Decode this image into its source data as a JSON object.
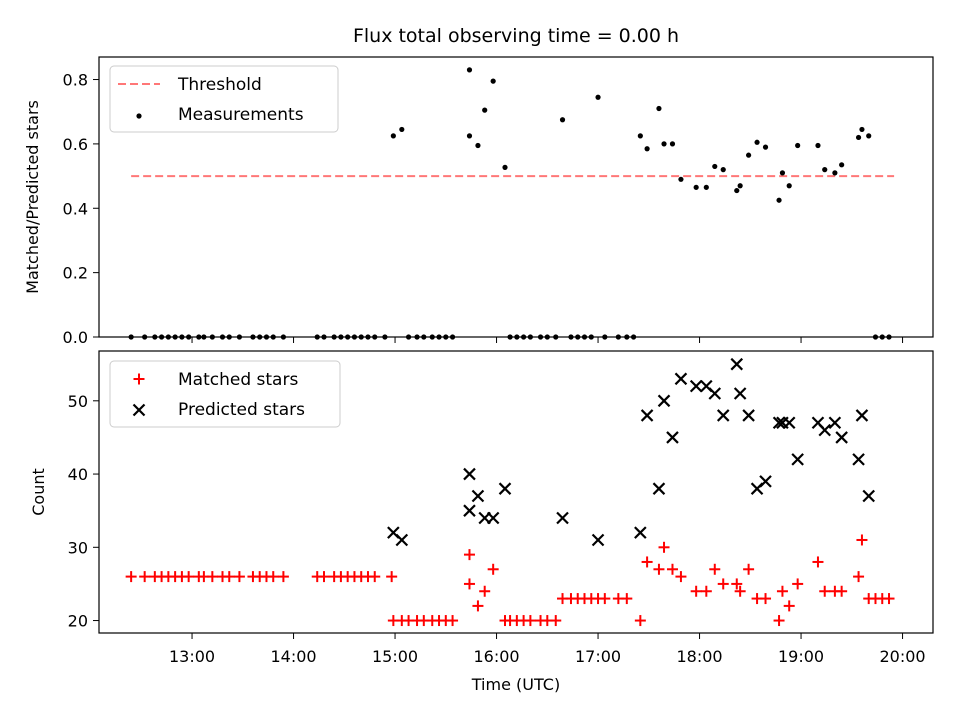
{
  "chart_data": [
    {
      "type": "scatter",
      "title": "Flux total observing time = 0.00 h",
      "ylabel": "Matched/Predicted stars",
      "xlabel": "",
      "ylim": [
        0,
        0.87
      ],
      "yticks": [
        0.0,
        0.2,
        0.4,
        0.6,
        0.8
      ],
      "ytick_labels": [
        "0.0",
        "0.2",
        "0.4",
        "0.6",
        "0.8"
      ],
      "legend_position": "top-left",
      "threshold": {
        "name": "Threshold",
        "value": 0.5,
        "x_range": [
          "12:24",
          "19:55"
        ],
        "color": "#ff7777"
      },
      "series": [
        {
          "name": "Measurements",
          "color": "#000000",
          "marker": "dot",
          "points": [
            [
              "12:24",
              0
            ],
            [
              "12:32",
              0
            ],
            [
              "12:38",
              0
            ],
            [
              "12:42",
              0
            ],
            [
              "12:46",
              0
            ],
            [
              "12:50",
              0
            ],
            [
              "12:54",
              0
            ],
            [
              "12:58",
              0
            ],
            [
              "13:04",
              0
            ],
            [
              "13:07",
              0
            ],
            [
              "13:12",
              0
            ],
            [
              "13:18",
              0
            ],
            [
              "13:22",
              0
            ],
            [
              "13:28",
              0
            ],
            [
              "13:36",
              0
            ],
            [
              "13:40",
              0
            ],
            [
              "13:44",
              0
            ],
            [
              "13:48",
              0
            ],
            [
              "13:54",
              0
            ],
            [
              "14:14",
              0
            ],
            [
              "14:18",
              0
            ],
            [
              "14:24",
              0
            ],
            [
              "14:28",
              0
            ],
            [
              "14:32",
              0
            ],
            [
              "14:36",
              0
            ],
            [
              "14:40",
              0
            ],
            [
              "14:44",
              0
            ],
            [
              "14:48",
              0
            ],
            [
              "14:54",
              0
            ],
            [
              "14:59",
              0.625
            ],
            [
              "15:04",
              0.645
            ],
            [
              "15:08",
              0
            ],
            [
              "15:13",
              0
            ],
            [
              "15:17",
              0
            ],
            [
              "15:22",
              0
            ],
            [
              "15:26",
              0
            ],
            [
              "15:30",
              0
            ],
            [
              "15:34",
              0
            ],
            [
              "15:44",
              0.83
            ],
            [
              "15:44",
              0.625
            ],
            [
              "15:49",
              0.595
            ],
            [
              "15:53",
              0.705
            ],
            [
              "15:58",
              0.795
            ],
            [
              "16:05",
              0.527
            ],
            [
              "16:08",
              0
            ],
            [
              "16:12",
              0
            ],
            [
              "16:16",
              0
            ],
            [
              "16:20",
              0
            ],
            [
              "16:26",
              0
            ],
            [
              "16:30",
              0
            ],
            [
              "16:35",
              0
            ],
            [
              "16:39",
              0.675
            ],
            [
              "16:44",
              0
            ],
            [
              "16:48",
              0
            ],
            [
              "16:52",
              0
            ],
            [
              "16:56",
              0
            ],
            [
              "17:00",
              0.745
            ],
            [
              "17:04",
              0
            ],
            [
              "17:12",
              0
            ],
            [
              "17:17",
              0
            ],
            [
              "17:21",
              0
            ],
            [
              "17:25",
              0.625
            ],
            [
              "17:29",
              0.585
            ],
            [
              "17:36",
              0.71
            ],
            [
              "17:39",
              0.6
            ],
            [
              "17:44",
              0.6
            ],
            [
              "17:49",
              0.49
            ],
            [
              "17:58",
              0.465
            ],
            [
              "18:04",
              0.465
            ],
            [
              "18:09",
              0.53
            ],
            [
              "18:14",
              0.52
            ],
            [
              "18:22",
              0.455
            ],
            [
              "18:24",
              0.47
            ],
            [
              "18:29",
              0.565
            ],
            [
              "18:34",
              0.605
            ],
            [
              "18:39",
              0.59
            ],
            [
              "18:47",
              0.425
            ],
            [
              "18:49",
              0.51
            ],
            [
              "18:53",
              0.47
            ],
            [
              "18:58",
              0.595
            ],
            [
              "19:10",
              0.595
            ],
            [
              "19:14",
              0.52
            ],
            [
              "19:20",
              0.51
            ],
            [
              "19:24",
              0.535
            ],
            [
              "19:34",
              0.62
            ],
            [
              "19:36",
              0.645
            ],
            [
              "19:40",
              0.625
            ],
            [
              "19:44",
              0
            ],
            [
              "19:48",
              0
            ],
            [
              "19:52",
              0
            ]
          ]
        }
      ]
    },
    {
      "type": "scatter",
      "title": "",
      "xlabel": "Time (UTC)",
      "ylabel": "Count",
      "ylim": [
        18.3,
        56.8
      ],
      "yticks": [
        20,
        30,
        40,
        50
      ],
      "ytick_labels": [
        "20",
        "30",
        "40",
        "50"
      ],
      "xlim": [
        "12:05",
        "20:18"
      ],
      "xticks": [
        "13:00",
        "14:00",
        "15:00",
        "16:00",
        "17:00",
        "18:00",
        "19:00",
        "20:00"
      ],
      "legend_position": "top-left",
      "series": [
        {
          "name": "Matched stars",
          "color": "#ff0000",
          "marker": "plus",
          "points": [
            [
              "12:24",
              26
            ],
            [
              "12:32",
              26
            ],
            [
              "12:38",
              26
            ],
            [
              "12:42",
              26
            ],
            [
              "12:46",
              26
            ],
            [
              "12:50",
              26
            ],
            [
              "12:54",
              26
            ],
            [
              "12:58",
              26
            ],
            [
              "13:04",
              26
            ],
            [
              "13:07",
              26
            ],
            [
              "13:12",
              26
            ],
            [
              "13:18",
              26
            ],
            [
              "13:22",
              26
            ],
            [
              "13:28",
              26
            ],
            [
              "13:36",
              26
            ],
            [
              "13:40",
              26
            ],
            [
              "13:44",
              26
            ],
            [
              "13:48",
              26
            ],
            [
              "13:54",
              26
            ],
            [
              "14:14",
              26
            ],
            [
              "14:18",
              26
            ],
            [
              "14:24",
              26
            ],
            [
              "14:28",
              26
            ],
            [
              "14:32",
              26
            ],
            [
              "14:36",
              26
            ],
            [
              "14:40",
              26
            ],
            [
              "14:44",
              26
            ],
            [
              "14:48",
              26
            ],
            [
              "14:58",
              26
            ],
            [
              "14:59",
              20
            ],
            [
              "15:04",
              20
            ],
            [
              "15:08",
              20
            ],
            [
              "15:13",
              20
            ],
            [
              "15:17",
              20
            ],
            [
              "15:22",
              20
            ],
            [
              "15:26",
              20
            ],
            [
              "15:30",
              20
            ],
            [
              "15:34",
              20
            ],
            [
              "15:44",
              29
            ],
            [
              "15:44",
              25
            ],
            [
              "15:49",
              22
            ],
            [
              "15:53",
              24
            ],
            [
              "15:58",
              27
            ],
            [
              "16:05",
              20
            ],
            [
              "16:08",
              20
            ],
            [
              "16:12",
              20
            ],
            [
              "16:16",
              20
            ],
            [
              "16:20",
              20
            ],
            [
              "16:26",
              20
            ],
            [
              "16:30",
              20
            ],
            [
              "16:35",
              20
            ],
            [
              "16:39",
              23
            ],
            [
              "16:44",
              23
            ],
            [
              "16:48",
              23
            ],
            [
              "16:52",
              23
            ],
            [
              "16:56",
              23
            ],
            [
              "17:00",
              23
            ],
            [
              "17:04",
              23
            ],
            [
              "17:12",
              23
            ],
            [
              "17:17",
              23
            ],
            [
              "17:25",
              20
            ],
            [
              "17:29",
              28
            ],
            [
              "17:36",
              27
            ],
            [
              "17:39",
              30
            ],
            [
              "17:44",
              27
            ],
            [
              "17:49",
              26
            ],
            [
              "17:58",
              24
            ],
            [
              "18:04",
              24
            ],
            [
              "18:09",
              27
            ],
            [
              "18:14",
              25
            ],
            [
              "18:22",
              25
            ],
            [
              "18:24",
              24
            ],
            [
              "18:29",
              27
            ],
            [
              "18:34",
              23
            ],
            [
              "18:39",
              23
            ],
            [
              "18:47",
              20
            ],
            [
              "18:49",
              24
            ],
            [
              "18:53",
              22
            ],
            [
              "18:58",
              25
            ],
            [
              "19:10",
              28
            ],
            [
              "19:14",
              24
            ],
            [
              "19:20",
              24
            ],
            [
              "19:24",
              24
            ],
            [
              "19:34",
              26
            ],
            [
              "19:36",
              31
            ],
            [
              "19:40",
              23
            ],
            [
              "19:44",
              23
            ],
            [
              "19:48",
              23
            ],
            [
              "19:52",
              23
            ]
          ]
        },
        {
          "name": "Predicted stars",
          "color": "#000000",
          "marker": "x",
          "points": [
            [
              "14:59",
              32
            ],
            [
              "15:04",
              31
            ],
            [
              "15:44",
              40
            ],
            [
              "15:44",
              35
            ],
            [
              "15:49",
              37
            ],
            [
              "15:53",
              34
            ],
            [
              "15:58",
              34
            ],
            [
              "16:05",
              38
            ],
            [
              "16:39",
              34
            ],
            [
              "17:00",
              31
            ],
            [
              "17:25",
              32
            ],
            [
              "17:29",
              48
            ],
            [
              "17:36",
              38
            ],
            [
              "17:39",
              50
            ],
            [
              "17:44",
              45
            ],
            [
              "17:49",
              53
            ],
            [
              "17:58",
              52
            ],
            [
              "18:04",
              52
            ],
            [
              "18:09",
              51
            ],
            [
              "18:14",
              48
            ],
            [
              "18:22",
              55
            ],
            [
              "18:24",
              51
            ],
            [
              "18:29",
              48
            ],
            [
              "18:34",
              38
            ],
            [
              "18:39",
              39
            ],
            [
              "18:47",
              47
            ],
            [
              "18:49",
              47
            ],
            [
              "18:53",
              47
            ],
            [
              "18:58",
              42
            ],
            [
              "19:10",
              47
            ],
            [
              "19:14",
              46
            ],
            [
              "19:20",
              47
            ],
            [
              "19:24",
              45
            ],
            [
              "19:34",
              42
            ],
            [
              "19:36",
              48
            ],
            [
              "19:40",
              37
            ]
          ]
        }
      ]
    }
  ]
}
